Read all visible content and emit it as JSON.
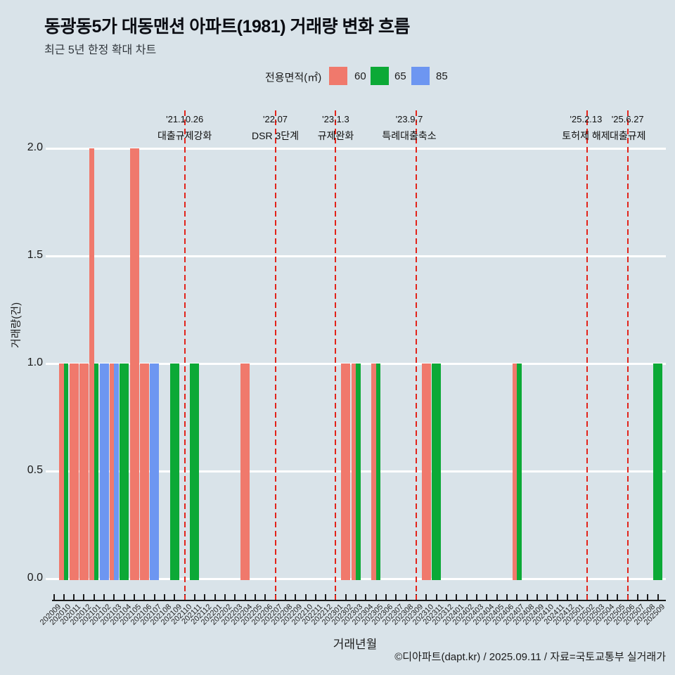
{
  "header": {
    "title": "동광동5가 대동맨션 아파트(1981) 거래량 변화 흐름",
    "subtitle": "최근 5년 한정 확대 차트"
  },
  "legend": {
    "label": "전용면적(㎡)",
    "items": [
      {
        "label": "60",
        "color": "#f0796c"
      },
      {
        "label": "65",
        "color": "#0ca936"
      },
      {
        "label": "85",
        "color": "#6d96f1"
      }
    ]
  },
  "chart_data": {
    "type": "bar",
    "title": "동광동5가 대동맨션 아파트(1981) 거래량 변화 흐름",
    "xlabel": "거래년월",
    "ylabel": "거래량(건)",
    "ylim": [
      0,
      2.0
    ],
    "yticks": [
      "0.0",
      "0.5",
      "1.0",
      "1.5",
      "2.0"
    ],
    "grid": "horizontal-white-on-bluegray",
    "background_color": "#d9e3e9",
    "legend_position": "top",
    "annotation_line_color": "#e2231a",
    "categories": [
      "202009",
      "202010",
      "202011",
      "202012",
      "202101",
      "202102",
      "202103",
      "202104",
      "202105",
      "202106",
      "202107",
      "202108",
      "202109",
      "202110",
      "202111",
      "202112",
      "202201",
      "202202",
      "202203",
      "202204",
      "202205",
      "202206",
      "202207",
      "202208",
      "202209",
      "202210",
      "202211",
      "202212",
      "202301",
      "202302",
      "202303",
      "202304",
      "202305",
      "202306",
      "202307",
      "202308",
      "202309",
      "202310",
      "202311",
      "202312",
      "202401",
      "202402",
      "202403",
      "202404",
      "202405",
      "202406",
      "202407",
      "202408",
      "202409",
      "202410",
      "202411",
      "202412",
      "202501",
      "202502",
      "202503",
      "202504",
      "202505",
      "202506",
      "202507",
      "202508",
      "202509"
    ],
    "series_colors": {
      "60": "#f0796c",
      "65": "#0ca936",
      "85": "#6d96f1"
    },
    "bars": [
      {
        "month": "202010",
        "area": "60",
        "value": 1
      },
      {
        "month": "202010",
        "area": "65",
        "value": 1
      },
      {
        "month": "202011",
        "area": "60",
        "value": 1
      },
      {
        "month": "202012",
        "area": "60",
        "value": 1
      },
      {
        "month": "202101",
        "area": "60",
        "value": 2
      },
      {
        "month": "202101",
        "area": "65",
        "value": 1
      },
      {
        "month": "202102",
        "area": "85",
        "value": 1
      },
      {
        "month": "202103",
        "area": "60",
        "value": 1
      },
      {
        "month": "202103",
        "area": "85",
        "value": 1
      },
      {
        "month": "202104",
        "area": "65",
        "value": 1
      },
      {
        "month": "202105",
        "area": "60",
        "value": 2
      },
      {
        "month": "202106",
        "area": "60",
        "value": 1
      },
      {
        "month": "202107",
        "area": "85",
        "value": 1
      },
      {
        "month": "202109",
        "area": "65",
        "value": 1
      },
      {
        "month": "202111",
        "area": "65",
        "value": 1
      },
      {
        "month": "202204",
        "area": "60",
        "value": 1
      },
      {
        "month": "202302",
        "area": "60",
        "value": 1
      },
      {
        "month": "202303",
        "area": "60",
        "value": 1
      },
      {
        "month": "202303",
        "area": "65",
        "value": 1
      },
      {
        "month": "202305",
        "area": "60",
        "value": 1
      },
      {
        "month": "202305",
        "area": "65",
        "value": 1
      },
      {
        "month": "202310",
        "area": "60",
        "value": 1
      },
      {
        "month": "202311",
        "area": "65",
        "value": 1
      },
      {
        "month": "202407",
        "area": "60",
        "value": 1
      },
      {
        "month": "202407",
        "area": "65",
        "value": 1
      },
      {
        "month": "202509",
        "area": "65",
        "value": 1
      }
    ],
    "annotations": [
      {
        "month": "202110",
        "date": "'21.10.26",
        "label": "대출규제강화"
      },
      {
        "month": "202207",
        "date": "'22.07",
        "label": "DSR 3단계"
      },
      {
        "month": "202301",
        "date": "'23.1.3",
        "label": "규제완화"
      },
      {
        "month": "202309",
        "date": "'23.9.7",
        "label": "특례대출축소"
      },
      {
        "month": "202502",
        "date": "'25.2.13",
        "label": "토허제 해제"
      },
      {
        "month": "202506",
        "date": "'25.6.27",
        "label": "대출규제"
      }
    ]
  },
  "footer": {
    "credit": "©디아파트(dapt.kr) / 2025.09.11 / 자료=국토교통부 실거래가"
  }
}
